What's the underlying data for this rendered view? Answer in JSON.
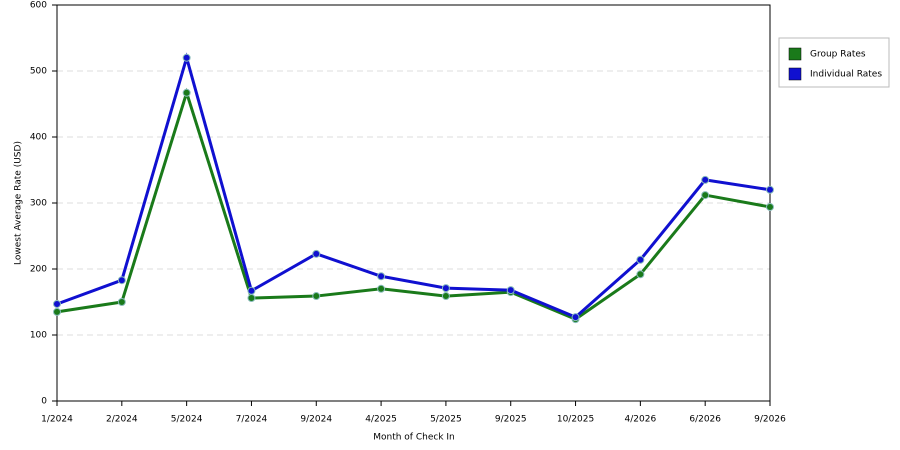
{
  "chart_data": {
    "type": "line",
    "x_label": "Month of Check In",
    "y_label": "Lowest Average Rate (USD)",
    "categories": [
      "1/2024",
      "2/2024",
      "5/2024",
      "7/2024",
      "9/2024",
      "4/2025",
      "5/2025",
      "9/2025",
      "10/2025",
      "4/2026",
      "6/2026",
      "9/2026"
    ],
    "series": [
      {
        "name": "Group Rates",
        "color": "#1a7a1a",
        "values": [
          135,
          150,
          467,
          156,
          159,
          170,
          159,
          165,
          124,
          192,
          312,
          294
        ]
      },
      {
        "name": "Individual Rates",
        "color": "#1010d0",
        "values": [
          147,
          183,
          520,
          167,
          223,
          189,
          171,
          168,
          127,
          214,
          335,
          320
        ]
      }
    ],
    "ylim": [
      0,
      600
    ],
    "yticks": [
      0,
      100,
      200,
      300,
      400,
      500,
      600
    ],
    "grid": true,
    "legend": "right"
  }
}
